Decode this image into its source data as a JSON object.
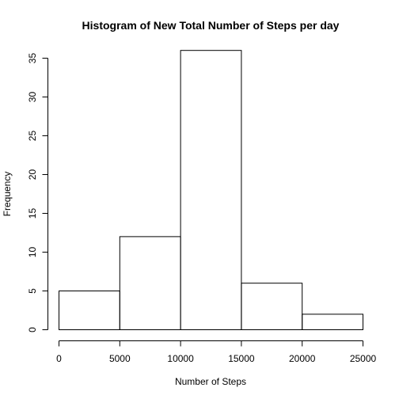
{
  "chart_data": {
    "type": "bar",
    "title": "Histogram of New Total Number of Steps per day",
    "xlabel": "Number of Steps",
    "ylabel": "Frequency",
    "bins": [
      {
        "start": 0,
        "end": 5000,
        "count": 5
      },
      {
        "start": 5000,
        "end": 10000,
        "count": 12
      },
      {
        "start": 10000,
        "end": 15000,
        "count": 36
      },
      {
        "start": 15000,
        "end": 20000,
        "count": 6
      },
      {
        "start": 20000,
        "end": 25000,
        "count": 2
      }
    ],
    "xlim": [
      0,
      25000
    ],
    "ylim": [
      0,
      35
    ],
    "x_ticks": [
      0,
      5000,
      10000,
      15000,
      20000,
      25000
    ],
    "y_ticks": [
      0,
      5,
      10,
      15,
      20,
      25,
      30,
      35
    ],
    "grid": false,
    "bar_fill": "#ffffff",
    "bar_stroke": "#000000"
  }
}
